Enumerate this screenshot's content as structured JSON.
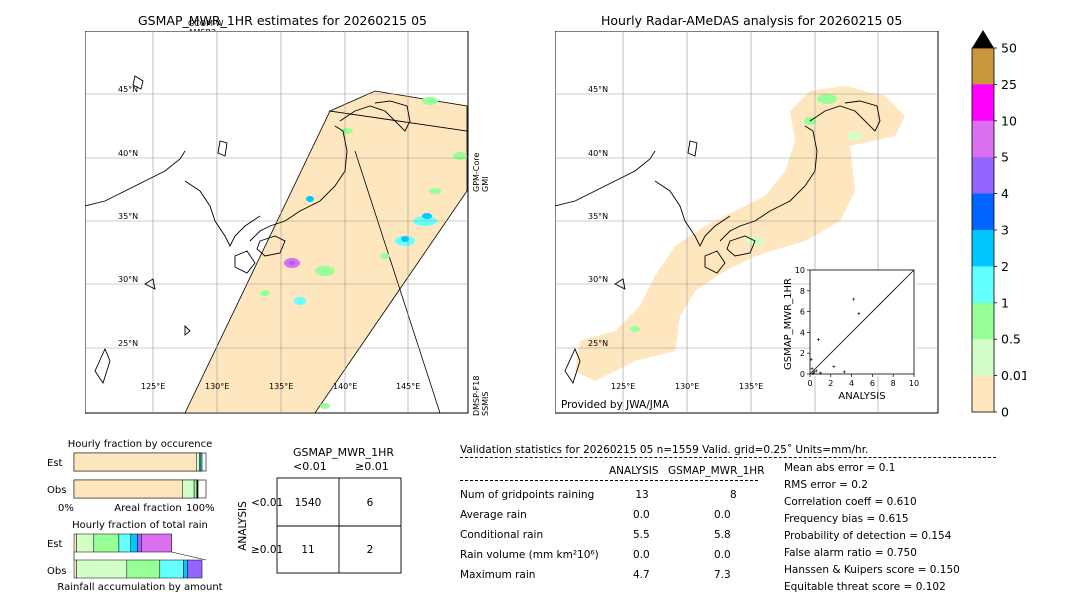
{
  "left_map": {
    "title": "GSMAP_MWR_1HR estimates for 20260215 05",
    "sensor_top": [
      "GCOM-W",
      "AMSR2"
    ],
    "sensor_right_1": [
      "GPM-Core",
      "GMI"
    ],
    "sensor_right_2": [
      "DMSP-F18",
      "SSMIS"
    ],
    "lat_labels": [
      "45°N",
      "40°N",
      "35°N",
      "30°N",
      "25°N"
    ],
    "lon_labels": [
      "125°E",
      "130°E",
      "135°E",
      "140°E",
      "145°E"
    ]
  },
  "right_map": {
    "title": "Hourly Radar-AMeDAS analysis for 20260215 05",
    "credit": "Provided by JWA/JMA",
    "lat_labels": [
      "45°N",
      "40°N",
      "35°N",
      "30°N",
      "25°N"
    ],
    "lon_labels": [
      "125°E",
      "130°E",
      "135°E"
    ]
  },
  "colorbar": {
    "labels": [
      "50",
      "25",
      "10",
      "5",
      "4",
      "3",
      "2",
      "1",
      "0.5",
      "0.01",
      "0"
    ],
    "colors": [
      "#c8963c",
      "#ff00ff",
      "#da70f0",
      "#9664ff",
      "#0064ff",
      "#00c8ff",
      "#64ffff",
      "#96ff96",
      "#d2ffc8",
      "#fee6be"
    ],
    "extend_color": "#000000"
  },
  "chart_data": [
    {
      "type": "scatter",
      "title": "",
      "xlabel": "ANALYSIS",
      "ylabel": "GSMAP_MWR_1HR",
      "xlim": [
        0,
        10
      ],
      "ylim": [
        0,
        10
      ],
      "xticks": [
        "0",
        "2",
        "4",
        "6",
        "8",
        "10"
      ],
      "yticks": [
        "0",
        "2",
        "4",
        "6",
        "8",
        "10"
      ],
      "points": [
        {
          "x": 4.2,
          "y": 7.2
        },
        {
          "x": 4.7,
          "y": 5.8
        },
        {
          "x": 0.8,
          "y": 3.3
        },
        {
          "x": 2.3,
          "y": 0.7
        },
        {
          "x": 0.1,
          "y": 1.4
        },
        {
          "x": 0.2,
          "y": 0.5
        },
        {
          "x": 0.4,
          "y": 0.2
        },
        {
          "x": 0.6,
          "y": 0.3
        },
        {
          "x": 1.0,
          "y": 0.1
        },
        {
          "x": 0.3,
          "y": 0.05
        },
        {
          "x": 3.3,
          "y": 0.2
        }
      ]
    },
    {
      "type": "bar",
      "title": "Hourly fraction by occurence",
      "categories": [
        "Est",
        "Obs"
      ],
      "xlabel": "Areal fraction",
      "x_ends": [
        "0%",
        "100%"
      ],
      "segments": [
        [
          {
            "v": 0.93,
            "c": "#fee6be"
          },
          {
            "v": 0.02,
            "c": "#d2ffc8"
          },
          {
            "v": 0.01,
            "c": "#96ff96"
          },
          {
            "v": 0.01,
            "c": "#00c8ff"
          }
        ],
        [
          {
            "v": 0.82,
            "c": "#fee6be"
          },
          {
            "v": 0.09,
            "c": "#d2ffc8"
          },
          {
            "v": 0.02,
            "c": "#96ff96"
          },
          {
            "v": 0.01,
            "c": "#000000"
          }
        ]
      ]
    },
    {
      "type": "bar",
      "title": "Hourly fraction of total rain",
      "categories": [
        "Est",
        "Obs"
      ],
      "xlabel": "Rainfall accumulation by amount",
      "segments": [
        [
          {
            "v": 0.02,
            "c": "#fee6be"
          },
          {
            "v": 0.13,
            "c": "#d2ffc8"
          },
          {
            "v": 0.19,
            "c": "#96ff96"
          },
          {
            "v": 0.09,
            "c": "#64ffff"
          },
          {
            "v": 0.05,
            "c": "#00c8ff"
          },
          {
            "v": 0.03,
            "c": "#9664ff"
          },
          {
            "v": 0.23,
            "c": "#da70f0"
          }
        ],
        [
          {
            "v": 0.02,
            "c": "#fee6be"
          },
          {
            "v": 0.38,
            "c": "#d2ffc8"
          },
          {
            "v": 0.25,
            "c": "#96ff96"
          },
          {
            "v": 0.18,
            "c": "#64ffff"
          },
          {
            "v": 0.03,
            "c": "#00c8ff"
          },
          {
            "v": 0.11,
            "c": "#9664ff"
          }
        ]
      ]
    }
  ],
  "contingency": {
    "title": "GSMAP_MWR_1HR",
    "col_headers": [
      "<0.01",
      "≥0.01"
    ],
    "row_headers": [
      "<0.01",
      "≥0.01"
    ],
    "side_label": "ANALYSIS",
    "cells": [
      [
        "1540",
        "6"
      ],
      [
        "11",
        "2"
      ]
    ]
  },
  "validation": {
    "header": "Validation statistics for 20260215 05  n=1559 Valid. grid=0.25˚ Units=mm/hr.",
    "col_analysis": "ANALYSIS",
    "col_gsmap": "GSMAP_MWR_1HR",
    "rows": [
      {
        "label": "Num of gridpoints raining",
        "a": "13",
        "g": "8"
      },
      {
        "label": "Average rain",
        "a": "0.0",
        "g": "0.0"
      },
      {
        "label": "Conditional rain",
        "a": "5.5",
        "g": "5.8"
      },
      {
        "label": "Rain volume (mm km²10⁶)",
        "a": "0.0",
        "g": "0.0"
      },
      {
        "label": "Maximum rain",
        "a": "4.7",
        "g": "7.3"
      }
    ],
    "scores": [
      "Mean abs error =    0.1",
      "RMS error =    0.2",
      "Correlation coeff =  0.610",
      "Frequency bias =  0.615",
      "Probability of detection =  0.154",
      "False alarm ratio =  0.750",
      "Hanssen & Kuipers score =  0.150",
      "Equitable threat score =  0.102"
    ]
  }
}
